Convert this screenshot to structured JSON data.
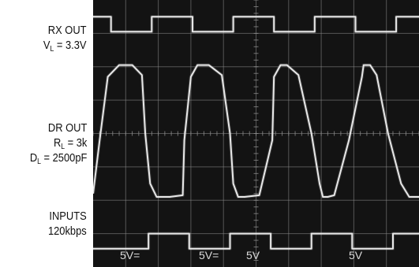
{
  "labels": {
    "rx": {
      "line1": "RX OUT",
      "sym": "V",
      "sub": "L",
      "val": " = 3.3V"
    },
    "dr": {
      "line1": "DR OUT",
      "r_sym": "R",
      "r_sub": "L",
      "r_val": " = 3k",
      "d_sym": "D",
      "d_sub": "L",
      "d_val": " = 2500pF"
    },
    "in": {
      "line1": "INPUTS",
      "line2": "120kbps"
    }
  },
  "scale_labels": [
    "5V=",
    "5V=",
    "5V",
    "5V"
  ],
  "colors": {
    "screen": "#131313",
    "trace": "#e8e8e8",
    "grid": "#8c8c8c"
  },
  "chart_data": {
    "type": "line",
    "grid": true,
    "divisions": {
      "x": 10,
      "y": 8
    },
    "series": [
      {
        "x": [
          0,
          0.55,
          0.55,
          1.8,
          1.8,
          3.05,
          3.05,
          4.3,
          4.3,
          5.55,
          5.55,
          6.8,
          6.8,
          8.05,
          8.05,
          9.3,
          9.3,
          10
        ],
        "y": [
          7.5,
          7.5,
          7.05,
          7.05,
          7.5,
          7.5,
          7.05,
          7.05,
          7.5,
          7.5,
          7.05,
          7.05,
          7.5,
          7.5,
          7.05,
          7.05,
          7.5,
          7.5
        ]
      },
      {
        "x": [
          0,
          0.2,
          0.45,
          0.8,
          1.2,
          1.5,
          1.6,
          1.75,
          1.95,
          2.35,
          2.75,
          2.8,
          3.0,
          3.2,
          3.55,
          3.95,
          4.2,
          4.3,
          4.45,
          4.65,
          5.1,
          5.5,
          5.55,
          5.75,
          5.95,
          6.3,
          6.7,
          6.95,
          7.05,
          7.2,
          7.4,
          7.85,
          8.25,
          8.3,
          8.5,
          8.7,
          9.05,
          9.45,
          9.7,
          9.8,
          9.95,
          10
        ],
        "y": [
          2.2,
          3.8,
          5.7,
          6.05,
          6.05,
          5.75,
          4.0,
          2.5,
          2.1,
          2.1,
          2.15,
          3.8,
          5.7,
          6.05,
          6.05,
          5.75,
          4.0,
          2.5,
          2.1,
          2.1,
          2.15,
          3.8,
          5.7,
          6.05,
          6.05,
          5.75,
          4.0,
          2.5,
          2.1,
          2.1,
          2.15,
          3.8,
          5.7,
          6.05,
          6.05,
          5.75,
          4.0,
          2.5,
          2.1,
          2.1,
          2.1,
          2.1
        ]
      },
      {
        "x": [
          0,
          1.7,
          1.7,
          2.95,
          2.95,
          4.2,
          4.2,
          5.45,
          5.45,
          6.7,
          6.7,
          7.95,
          7.95,
          9.2,
          9.2,
          10
        ],
        "y": [
          0.55,
          0.55,
          1.0,
          1.0,
          0.55,
          0.55,
          1.0,
          1.0,
          0.55,
          0.55,
          1.0,
          1.0,
          0.55,
          0.55,
          1.0,
          1.0
        ]
      }
    ]
  }
}
